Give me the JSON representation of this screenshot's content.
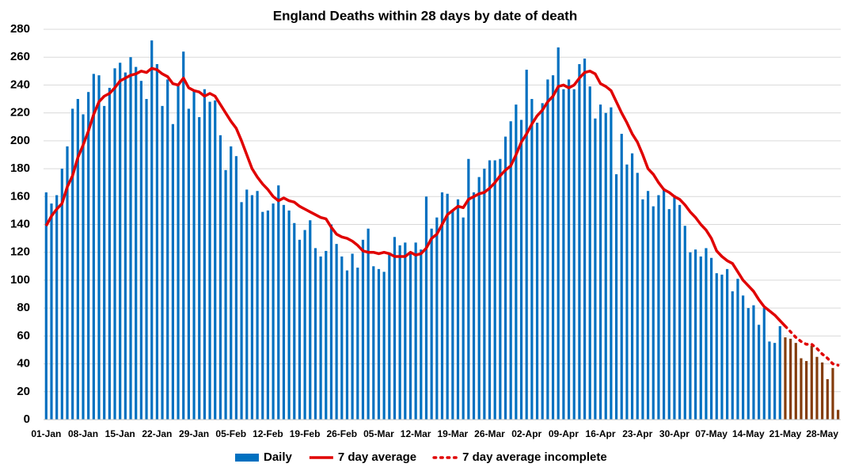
{
  "chart_data": {
    "type": "bar",
    "title": "England Deaths within 28 days by date of death",
    "categories": [
      "01-Jan",
      null,
      null,
      null,
      null,
      null,
      null,
      "08-Jan",
      null,
      null,
      null,
      null,
      null,
      null,
      "15-Jan",
      null,
      null,
      null,
      null,
      null,
      null,
      "22-Jan",
      null,
      null,
      null,
      null,
      null,
      null,
      "29-Jan",
      null,
      null,
      null,
      null,
      null,
      null,
      "05-Feb",
      null,
      null,
      null,
      null,
      null,
      null,
      "12-Feb",
      null,
      null,
      null,
      null,
      null,
      null,
      "19-Feb",
      null,
      null,
      null,
      null,
      null,
      null,
      "26-Feb",
      null,
      null,
      null,
      null,
      null,
      null,
      "05-Mar",
      null,
      null,
      null,
      null,
      null,
      null,
      "12-Mar",
      null,
      null,
      null,
      null,
      null,
      null,
      "19-Mar",
      null,
      null,
      null,
      null,
      null,
      null,
      "26-Mar",
      null,
      null,
      null,
      null,
      null,
      null,
      "02-Apr",
      null,
      null,
      null,
      null,
      null,
      null,
      "09-Apr",
      null,
      null,
      null,
      null,
      null,
      null,
      "16-Apr",
      null,
      null,
      null,
      null,
      null,
      null,
      "23-Apr",
      null,
      null,
      null,
      null,
      null,
      null,
      "30-Apr",
      null,
      null,
      null,
      null,
      null,
      null,
      "07-May",
      null,
      null,
      null,
      null,
      null,
      null,
      "14-May",
      null,
      null,
      null,
      null,
      null,
      null,
      "21-May",
      null,
      null,
      null,
      null,
      null,
      null,
      "28-May",
      null,
      null,
      null
    ],
    "series": [
      {
        "name": "Daily",
        "type": "bar",
        "color": "#0070C0",
        "values": [
          163,
          155,
          161,
          180,
          196,
          223,
          230,
          219,
          235,
          248,
          247,
          225,
          238,
          252,
          256,
          249,
          260,
          253,
          243,
          230,
          272,
          255,
          225,
          244,
          212,
          240,
          264,
          223,
          236,
          217,
          237,
          228,
          229,
          204,
          179,
          196,
          189,
          156,
          165,
          161,
          164,
          149,
          150,
          155,
          168,
          154,
          150,
          141,
          129,
          136,
          143,
          123,
          117,
          121,
          140,
          126,
          117,
          107,
          119,
          109,
          129,
          137,
          110,
          108,
          106,
          119,
          131,
          125,
          127,
          120,
          127,
          122,
          160,
          137,
          145,
          163,
          162,
          150,
          158,
          145,
          187,
          163,
          174,
          180,
          186,
          186,
          187,
          203,
          214,
          226,
          215,
          251,
          230,
          213,
          227,
          244,
          247,
          267,
          237,
          244,
          237,
          255,
          259,
          239,
          216,
          226,
          220,
          224,
          176,
          205,
          183,
          191,
          177,
          158,
          164,
          153,
          161,
          166,
          151,
          161,
          154,
          139,
          120,
          122,
          117,
          123,
          116,
          105,
          104,
          108,
          92,
          101,
          89,
          80,
          82,
          68,
          80,
          56,
          55,
          67,
          null,
          null,
          null,
          null,
          null,
          null,
          null,
          null,
          null,
          null,
          null
        ]
      },
      {
        "type": "bar",
        "color": "#843C0C",
        "values": [
          null,
          null,
          null,
          null,
          null,
          null,
          null,
          null,
          null,
          null,
          null,
          null,
          null,
          null,
          null,
          null,
          null,
          null,
          null,
          null,
          null,
          null,
          null,
          null,
          null,
          null,
          null,
          null,
          null,
          null,
          null,
          null,
          null,
          null,
          null,
          null,
          null,
          null,
          null,
          null,
          null,
          null,
          null,
          null,
          null,
          null,
          null,
          null,
          null,
          null,
          null,
          null,
          null,
          null,
          null,
          null,
          null,
          null,
          null,
          null,
          null,
          null,
          null,
          null,
          null,
          null,
          null,
          null,
          null,
          null,
          null,
          null,
          null,
          null,
          null,
          null,
          null,
          null,
          null,
          null,
          null,
          null,
          null,
          null,
          null,
          null,
          null,
          null,
          null,
          null,
          null,
          null,
          null,
          null,
          null,
          null,
          null,
          null,
          null,
          null,
          null,
          null,
          null,
          null,
          null,
          null,
          null,
          null,
          null,
          null,
          null,
          null,
          null,
          null,
          null,
          null,
          null,
          null,
          null,
          null,
          null,
          null,
          null,
          null,
          null,
          null,
          null,
          null,
          null,
          null,
          null,
          null,
          null,
          null,
          null,
          null,
          null,
          null,
          null,
          null,
          59,
          58,
          55,
          44,
          42,
          53,
          45,
          41,
          29,
          37,
          7
        ]
      },
      {
        "name": "7 day average",
        "type": "line",
        "style": "solid",
        "color": "#E00000",
        "values": [
          139,
          146,
          151,
          155,
          167,
          175,
          188,
          197,
          207,
          219,
          228,
          232,
          234,
          238,
          243,
          245,
          247,
          248,
          250,
          249,
          252,
          251,
          248,
          246,
          241,
          240,
          245,
          238,
          236,
          235,
          232,
          234,
          232,
          226,
          220,
          214,
          209,
          200,
          190,
          180,
          174,
          169,
          165,
          160,
          157,
          159,
          157,
          156,
          153,
          151,
          149,
          147,
          145,
          144,
          138,
          133,
          131,
          130,
          128,
          125,
          121,
          120,
          120,
          119,
          120,
          119,
          117,
          117,
          117,
          120,
          118,
          119,
          123,
          130,
          133,
          140,
          147,
          150,
          153,
          152,
          158,
          160,
          162,
          163,
          166,
          170,
          175,
          179,
          182,
          190,
          199,
          205,
          212,
          218,
          222,
          228,
          232,
          239,
          240,
          238,
          240,
          245,
          249,
          250,
          248,
          241,
          239,
          236,
          228,
          220,
          213,
          205,
          199,
          190,
          180,
          176,
          170,
          165,
          163,
          160,
          158,
          154,
          149,
          145,
          140,
          136,
          130,
          121,
          117,
          114,
          112,
          106,
          100,
          96,
          92,
          86,
          81,
          78,
          75,
          71,
          67,
          null,
          null,
          null,
          null,
          null,
          null,
          null,
          null,
          null,
          null
        ]
      },
      {
        "name": "7 day average incomplete",
        "type": "line",
        "style": "dotted",
        "color": "#E00000",
        "values": [
          null,
          null,
          null,
          null,
          null,
          null,
          null,
          null,
          null,
          null,
          null,
          null,
          null,
          null,
          null,
          null,
          null,
          null,
          null,
          null,
          null,
          null,
          null,
          null,
          null,
          null,
          null,
          null,
          null,
          null,
          null,
          null,
          null,
          null,
          null,
          null,
          null,
          null,
          null,
          null,
          null,
          null,
          null,
          null,
          null,
          null,
          null,
          null,
          null,
          null,
          null,
          null,
          null,
          null,
          null,
          null,
          null,
          null,
          null,
          null,
          null,
          null,
          null,
          null,
          null,
          null,
          null,
          null,
          null,
          null,
          null,
          null,
          null,
          null,
          null,
          null,
          null,
          null,
          null,
          null,
          null,
          null,
          null,
          null,
          null,
          null,
          null,
          null,
          null,
          null,
          null,
          null,
          null,
          null,
          null,
          null,
          null,
          null,
          null,
          null,
          null,
          null,
          null,
          null,
          null,
          null,
          null,
          null,
          null,
          null,
          null,
          null,
          null,
          null,
          null,
          null,
          null,
          null,
          null,
          null,
          null,
          null,
          null,
          null,
          null,
          null,
          null,
          null,
          null,
          null,
          null,
          null,
          null,
          null,
          null,
          null,
          null,
          null,
          null,
          null,
          67,
          63,
          59,
          56,
          54,
          54,
          51,
          47,
          44,
          40,
          39
        ]
      }
    ],
    "ylim": [
      0,
      280
    ],
    "yticks": [
      0,
      20,
      40,
      60,
      80,
      100,
      120,
      140,
      160,
      180,
      200,
      220,
      240,
      260,
      280
    ],
    "grid": true,
    "legend": "bottom"
  }
}
